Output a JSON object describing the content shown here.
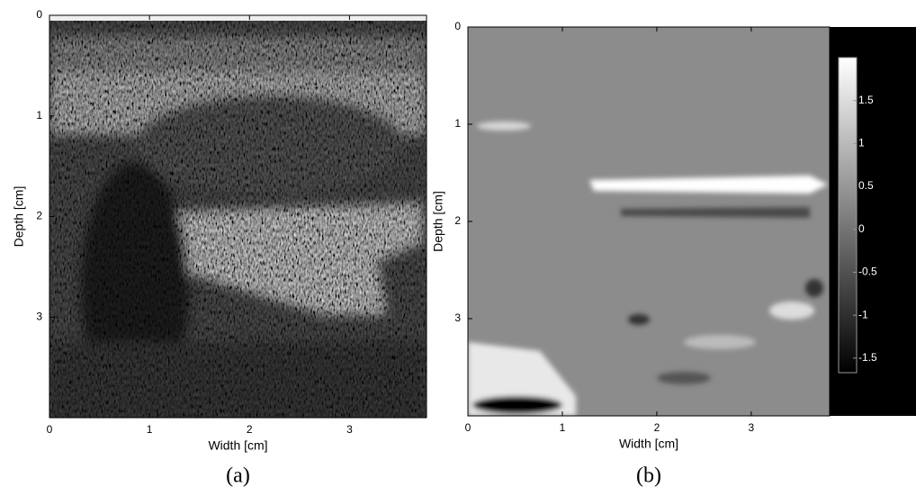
{
  "chart_data": [
    {
      "type": "image",
      "xlabel": "Width [cm]",
      "ylabel": "Depth [cm]",
      "caption": "(a)",
      "xlim": [
        0,
        3.77
      ],
      "ylim": [
        4,
        0
      ],
      "xticks": [
        0,
        1,
        2,
        3
      ],
      "yticks": [
        0,
        1,
        2,
        3
      ],
      "colormap": "gray"
    },
    {
      "type": "image",
      "xlabel": "Width [cm]",
      "ylabel": "Depth [cm]",
      "caption": "(b)",
      "xlim": [
        0,
        3.83
      ],
      "ylim": [
        4,
        0
      ],
      "xticks": [
        0,
        1,
        2,
        3
      ],
      "yticks": [
        0,
        1,
        2,
        3
      ],
      "colormap": "gray",
      "colorbar": true,
      "clim": [
        -1.67,
        2
      ],
      "cticks": [
        1.5,
        1,
        0.5,
        0,
        -0.5,
        -1,
        -1.5
      ]
    }
  ]
}
